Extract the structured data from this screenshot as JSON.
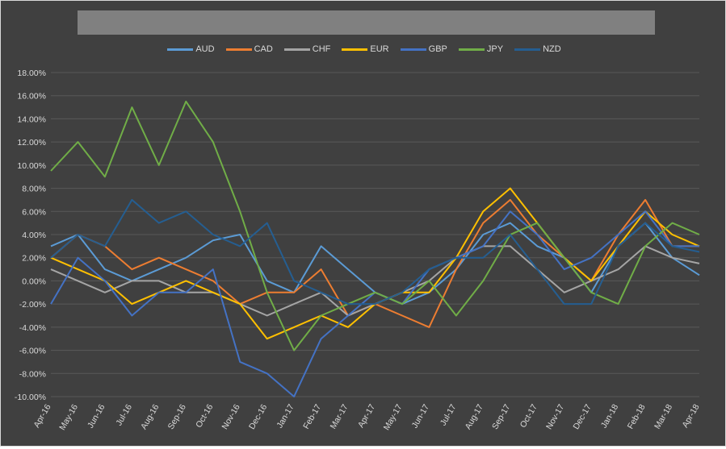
{
  "chart_data": {
    "type": "line",
    "title": "",
    "xlabel": "",
    "ylabel": "",
    "ylim": [
      -10,
      18
    ],
    "ytick_step": 2,
    "ytick_format": "percent-2dp",
    "grid": true,
    "legend_position": "top",
    "categories": [
      "Apr-16",
      "May-16",
      "Jun-16",
      "Jul-16",
      "Aug-16",
      "Sep-16",
      "Oct-16",
      "Nov-16",
      "Dec-16",
      "Jan-17",
      "Feb-17",
      "Mar-17",
      "Apr-17",
      "May-17",
      "Jun-17",
      "Jul-17",
      "Aug-17",
      "Sep-17",
      "Oct-17",
      "Nov-17",
      "Dec-17",
      "Jan-18",
      "Feb-18",
      "Mar-18",
      "Apr-18"
    ],
    "series": [
      {
        "name": "AUD",
        "color": "#5b9bd5",
        "values": [
          3,
          4,
          1,
          0,
          1,
          2,
          3.5,
          4,
          0,
          -1,
          3,
          1,
          -1,
          -2,
          -1,
          1,
          4,
          5,
          3,
          2,
          -1,
          3,
          5,
          2,
          0.5
        ]
      },
      {
        "name": "CAD",
        "color": "#ed7d31",
        "values": [
          2,
          4,
          3,
          1,
          2,
          1,
          0,
          -2,
          -1,
          -1,
          1,
          -3,
          -2,
          -3,
          -4,
          1,
          5,
          7,
          4,
          2,
          0,
          4,
          7,
          3,
          3
        ]
      },
      {
        "name": "CHF",
        "color": "#a5a5a5",
        "values": [
          1,
          0,
          -1,
          0,
          0,
          -1,
          -1,
          -2,
          -3,
          -2,
          -1,
          -3,
          -2,
          -1,
          0,
          2,
          3,
          3,
          1,
          -1,
          0,
          1,
          3,
          2,
          1.5
        ]
      },
      {
        "name": "EUR",
        "color": "#ffc000",
        "values": [
          2,
          1,
          0,
          -2,
          -1,
          0,
          -1,
          -2,
          -5,
          -4,
          -3,
          -4,
          -2,
          -1,
          -1,
          2,
          6,
          8,
          5,
          2,
          0,
          3,
          6,
          4,
          3
        ]
      },
      {
        "name": "GBP",
        "color": "#4472c4",
        "values": [
          -2,
          2,
          0,
          -3,
          -1,
          -1,
          1,
          -7,
          -8,
          -10,
          -5,
          -3,
          -1,
          -2,
          1,
          2,
          3,
          6,
          4,
          1,
          2,
          4,
          6,
          3,
          3
        ]
      },
      {
        "name": "JPY",
        "color": "#70ad47",
        "values": [
          9.5,
          12,
          9,
          15,
          10,
          15.5,
          12,
          6,
          -1,
          -6,
          -3,
          -2,
          -1,
          -2,
          0,
          -3,
          0,
          4,
          5,
          2,
          -1,
          -2,
          3,
          5,
          4
        ]
      },
      {
        "name": "NZD",
        "color": "#255e91",
        "values": [
          2,
          4,
          3,
          7,
          5,
          6,
          4,
          3,
          5,
          0,
          -1,
          -2,
          -2,
          -1,
          1,
          2,
          2,
          4,
          1,
          -2,
          -2,
          3,
          5,
          3,
          2.5
        ]
      }
    ]
  },
  "colors": {
    "background": "#404040",
    "gridline": "#595959",
    "title_bar": "#808080",
    "text": "#d9d9d9"
  }
}
